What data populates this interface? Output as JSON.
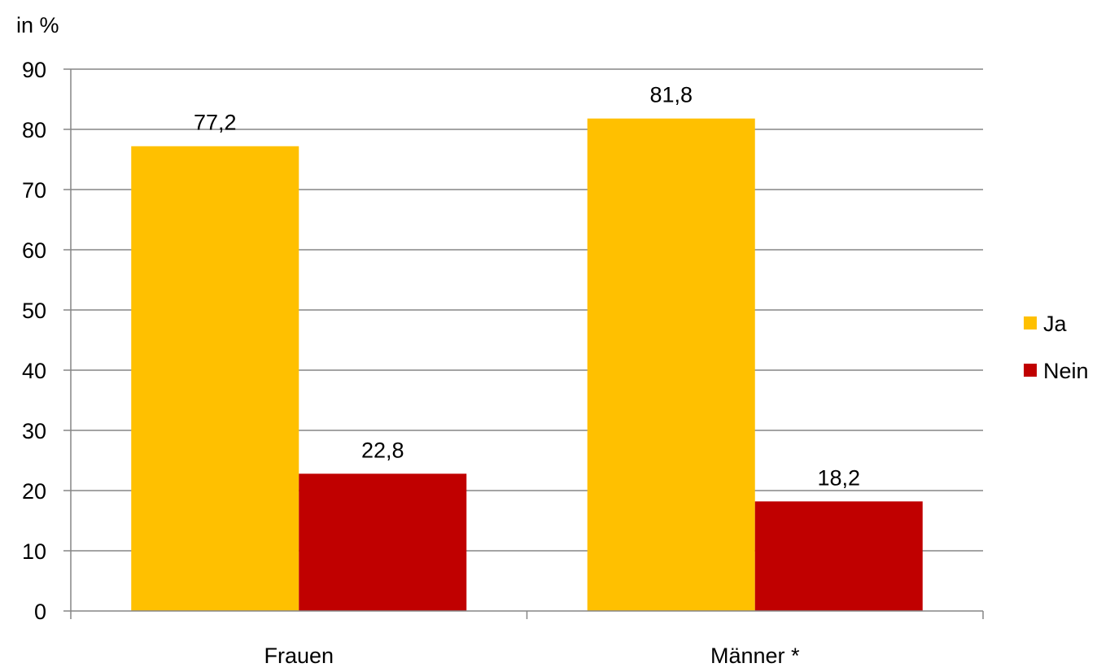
{
  "chart_data": {
    "type": "bar",
    "title": "",
    "xlabel": "",
    "ylabel": "in %",
    "ylim": [
      0,
      90
    ],
    "yticks": [
      0,
      10,
      20,
      30,
      40,
      50,
      60,
      70,
      80,
      90
    ],
    "grid": true,
    "legend_position": "right",
    "categories": [
      "Frauen",
      "Männer *"
    ],
    "series": [
      {
        "name": "Ja",
        "color": "#FFC000",
        "values": [
          77.2,
          81.8
        ],
        "labels": [
          "77,2",
          "81,8"
        ]
      },
      {
        "name": "Nein",
        "color": "#C00000",
        "values": [
          22.8,
          18.2
        ],
        "labels": [
          "22,8",
          "18,2"
        ]
      }
    ]
  }
}
